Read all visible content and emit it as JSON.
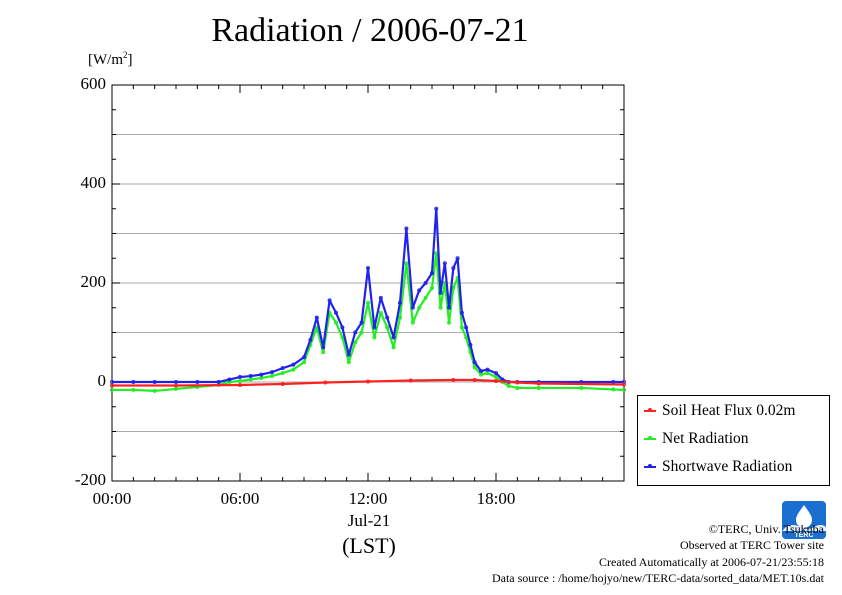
{
  "title": "Radiation / 2006-07-21",
  "unit_label": "[W/m",
  "unit_sup": "2",
  "unit_close": "]",
  "x_date_label": "Jul-21",
  "x_zone_label": "(LST)",
  "credits": {
    "copyright": "©TERC, Univ. Tsukuba",
    "observed": "Observed at TERC Tower site",
    "created": "Created Automatically at 2006-07-21/23:55:18",
    "source": "Data source : /home/hojyo/new/TERC-data/sorted_data/MET.10s.dat"
  },
  "logo_text": "TERC",
  "chart_data": {
    "type": "line",
    "title": "Radiation / 2006-07-21",
    "ylabel": "[W/m2]",
    "xlabel": "(LST)",
    "xlim": [
      0,
      24
    ],
    "ylim": [
      -200,
      600
    ],
    "yticks": [
      -200,
      0,
      200,
      400,
      600
    ],
    "ytick_labels": [
      "-200",
      "0",
      "200",
      "400",
      "600"
    ],
    "xticks": [
      0,
      6,
      12,
      18
    ],
    "xtick_labels": [
      "00:00",
      "06:00",
      "12:00",
      "18:00"
    ],
    "grid": true,
    "legend_position": "outside-right",
    "series": [
      {
        "name": "Soil Heat Flux 0.02m",
        "color": "#ff2020",
        "x": [
          0,
          3,
          6,
          8,
          10,
          12,
          14,
          16,
          17,
          18,
          19,
          20,
          24
        ],
        "y": [
          -7,
          -7,
          -6,
          -4,
          -1,
          1,
          3,
          4,
          4,
          2,
          -1,
          -3,
          -5
        ]
      },
      {
        "name": "Net Radiation",
        "color": "#22ee22",
        "x": [
          0,
          1,
          2,
          3,
          4,
          5,
          5.5,
          6,
          6.5,
          7,
          7.5,
          8,
          8.5,
          9,
          9.3,
          9.6,
          9.9,
          10.2,
          10.5,
          10.8,
          11.1,
          11.4,
          11.7,
          12,
          12.3,
          12.6,
          12.9,
          13.2,
          13.5,
          13.8,
          14.1,
          14.4,
          14.7,
          15,
          15.2,
          15.4,
          15.6,
          15.8,
          16,
          16.2,
          16.4,
          16.6,
          16.8,
          17,
          17.3,
          17.6,
          18,
          18.3,
          18.6,
          19,
          20,
          22,
          23.5,
          24
        ],
        "y": [
          -16,
          -16,
          -18,
          -14,
          -10,
          -6,
          0,
          2,
          5,
          8,
          12,
          18,
          25,
          40,
          75,
          110,
          60,
          140,
          120,
          90,
          40,
          80,
          100,
          160,
          90,
          140,
          110,
          70,
          130,
          240,
          120,
          150,
          170,
          190,
          260,
          150,
          200,
          120,
          190,
          210,
          110,
          90,
          60,
          30,
          15,
          18,
          10,
          0,
          -8,
          -12,
          -12,
          -12,
          -15,
          -16
        ]
      },
      {
        "name": "Shortwave Radiation",
        "color": "#2222ee",
        "x": [
          0,
          1,
          2,
          3,
          4,
          5,
          5.5,
          6,
          6.5,
          7,
          7.5,
          8,
          8.5,
          9,
          9.3,
          9.6,
          9.9,
          10.2,
          10.5,
          10.8,
          11.1,
          11.4,
          11.7,
          12,
          12.3,
          12.6,
          12.9,
          13.2,
          13.5,
          13.8,
          14.1,
          14.4,
          14.7,
          15,
          15.2,
          15.4,
          15.6,
          15.8,
          16,
          16.2,
          16.4,
          16.6,
          16.8,
          17,
          17.3,
          17.6,
          18,
          18.3,
          18.6,
          19,
          20,
          22,
          23.5,
          24
        ],
        "y": [
          0,
          0,
          0,
          0,
          0,
          0,
          5,
          10,
          12,
          15,
          20,
          28,
          35,
          50,
          85,
          130,
          70,
          165,
          140,
          110,
          55,
          100,
          120,
          230,
          110,
          170,
          130,
          90,
          160,
          310,
          150,
          185,
          200,
          220,
          350,
          180,
          240,
          150,
          230,
          250,
          140,
          110,
          75,
          40,
          22,
          25,
          18,
          5,
          0,
          0,
          0,
          0,
          0,
          0
        ]
      }
    ]
  }
}
